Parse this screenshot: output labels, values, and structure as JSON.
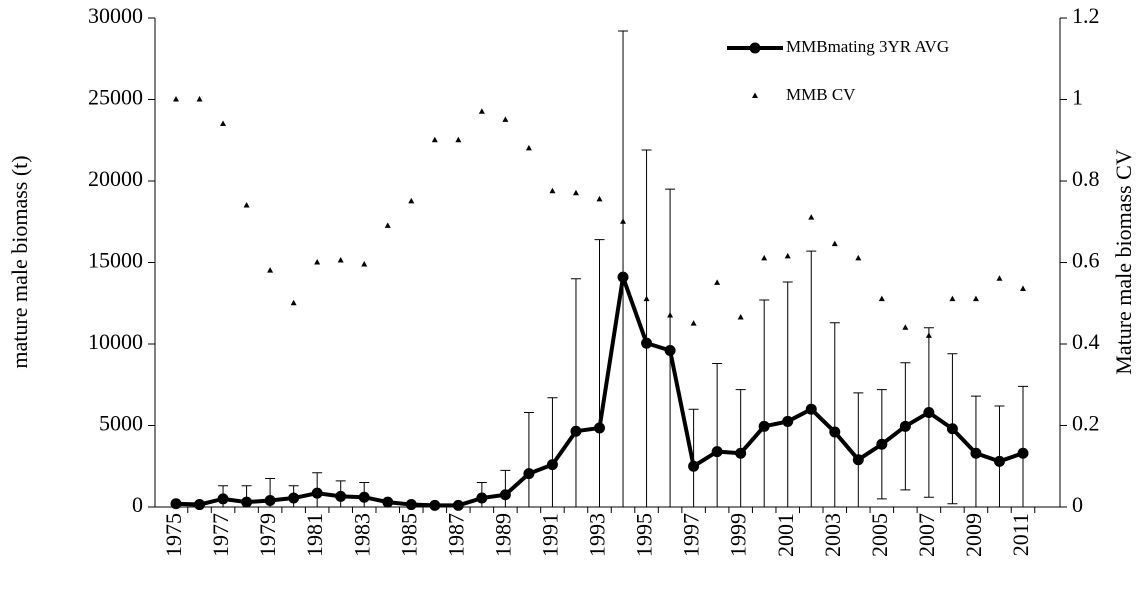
{
  "chart_data": {
    "type": "line",
    "y_label": "mature male biomass (t)",
    "y2_label": "Mature male biomass CV",
    "categories": [
      "1975",
      null,
      "1977",
      null,
      "1979",
      null,
      "1981",
      null,
      "1983",
      null,
      "1985",
      null,
      "1987",
      null,
      "1989",
      null,
      "1991",
      null,
      "1993",
      null,
      "1995",
      null,
      "1997",
      null,
      "1999",
      null,
      "2001",
      null,
      "2003",
      null,
      "2005",
      null,
      "2007",
      null,
      "2009",
      null,
      "2011"
    ],
    "series": [
      {
        "name": "MMBmating 3YR AVG",
        "color": "#000000",
        "marker": "circle",
        "values": [
          200,
          150,
          500,
          300,
          400,
          550,
          850,
          650,
          600,
          300,
          150,
          100,
          100,
          550,
          750,
          2050,
          2600,
          4650,
          4850,
          14100,
          10050,
          9600,
          2500,
          3400,
          3300,
          4950,
          5250,
          6000,
          4600,
          2900,
          3850,
          4950,
          5800,
          4800,
          3300,
          2800,
          3300
        ],
        "errors": [
          0,
          0,
          800,
          1000,
          1350,
          750,
          1250,
          950,
          900,
          0,
          0,
          0,
          0,
          950,
          1500,
          3750,
          4100,
          9350,
          11550,
          15100,
          11850,
          9900,
          3500,
          5400,
          3900,
          7750,
          8550,
          9700,
          6700,
          4100,
          3350,
          3900,
          5200,
          4600,
          3500,
          3400,
          4100
        ]
      },
      {
        "name": "MMB CV",
        "color": "#000000",
        "marker": "triangle",
        "axis": "y2",
        "values": [
          1.0,
          1.0,
          0.94,
          0.74,
          0.58,
          0.5,
          0.6,
          0.605,
          0.595,
          0.69,
          0.75,
          0.9,
          0.9,
          0.97,
          0.95,
          0.88,
          0.775,
          0.77,
          0.755,
          0.7,
          0.51,
          0.47,
          0.45,
          0.55,
          0.465,
          0.61,
          0.615,
          0.71,
          0.645,
          0.61,
          0.51,
          0.44,
          0.42,
          0.51,
          0.51,
          0.56,
          0.535
        ]
      }
    ],
    "ylim": [
      0,
      30000
    ],
    "yticks": [
      0,
      5000,
      10000,
      15000,
      20000,
      25000,
      30000
    ],
    "y2lim": [
      0,
      1.2
    ],
    "y2ticks": [
      0,
      0.2,
      0.4,
      0.6,
      0.8,
      1,
      1.2
    ],
    "legend": "upper right"
  }
}
